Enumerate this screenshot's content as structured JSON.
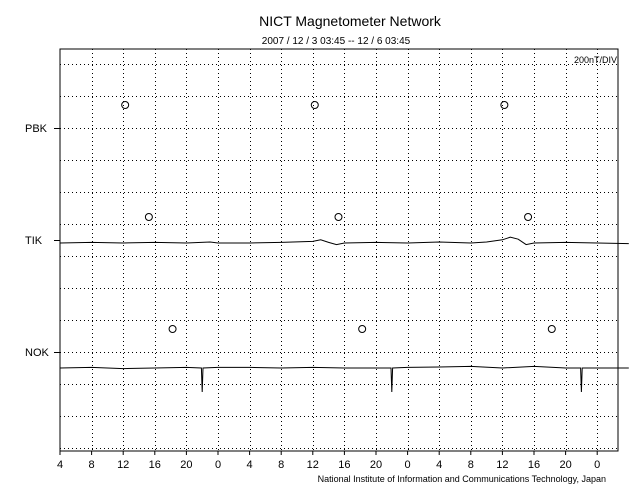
{
  "chart_data": {
    "type": "line",
    "title": "NICT Magnetometer Network",
    "subtitle": "2007 / 12 / 3   03:45 -- 12 / 6   03:45",
    "scale_label": "200nT/DIV",
    "footer": "National Institute of Information and Communications Technology, Japan",
    "x_ticks": [
      "4",
      "8",
      "12",
      "16",
      "20",
      "0",
      "4",
      "8",
      "12",
      "16",
      "20",
      "0",
      "4",
      "8",
      "12",
      "16",
      "20",
      "0"
    ],
    "x_range_hours": [
      0,
      72
    ],
    "grid": true,
    "stations": [
      {
        "name": "PBK",
        "has_trace": false,
        "baseline_div": 0,
        "noon_marker_hours": [
          8.25,
          32.25,
          56.25
        ]
      },
      {
        "name": "TIK",
        "has_trace": true,
        "baseline_div": 0,
        "noon_marker_hours": [
          11.25,
          35.25,
          59.25
        ]
      },
      {
        "name": "NOK",
        "has_trace": true,
        "baseline_div": 0,
        "noon_marker_hours": [
          14.25,
          38.25,
          62.25
        ]
      }
    ],
    "series": [
      {
        "name": "TIK",
        "x": [
          0,
          4,
          8,
          12,
          16,
          19,
          20,
          24,
          28,
          32,
          33,
          34,
          35,
          36,
          40,
          44,
          48,
          52,
          54,
          56,
          57,
          58,
          59,
          60,
          64,
          68,
          72
        ],
        "values": [
          0,
          0.02,
          0,
          0.02,
          0,
          0.03,
          0,
          0,
          0.02,
          0.05,
          0.1,
          0.02,
          -0.05,
          0,
          0.02,
          0,
          0.03,
          0,
          0.03,
          0.1,
          0.18,
          0.12,
          -0.05,
          0,
          0.02,
          0,
          -0.02
        ]
      },
      {
        "name": "NOK",
        "x": [
          0,
          4,
          8,
          12,
          16,
          17.9,
          18,
          18.1,
          20,
          24,
          28,
          32,
          36,
          41.9,
          42,
          42.1,
          44,
          48,
          52,
          56,
          60,
          64,
          65.9,
          66,
          66.1,
          68,
          72
        ],
        "values": [
          0,
          0.02,
          -0.02,
          0,
          0.02,
          0,
          -0.75,
          0,
          0.02,
          0.02,
          0,
          0.02,
          0,
          0,
          -0.75,
          0,
          0.02,
          0.03,
          0.05,
          0,
          0.05,
          0,
          0,
          -0.75,
          0,
          0,
          0
        ]
      }
    ]
  }
}
